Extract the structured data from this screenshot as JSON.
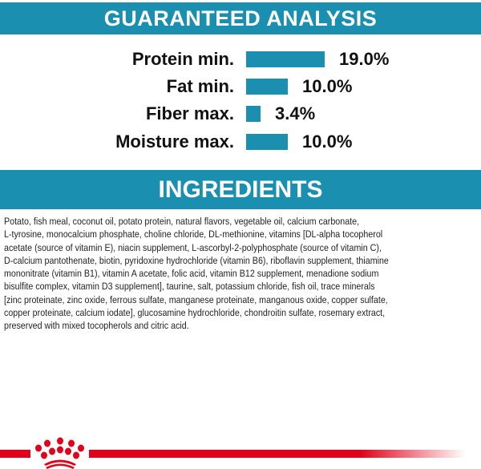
{
  "guaranteed_analysis": {
    "title": "GUARANTEED ANALYSIS",
    "accent_color": "#1b8fb0",
    "rows": [
      {
        "label": "Protein min.",
        "value": "19.0%",
        "percent": 19.0
      },
      {
        "label": "Fat min.",
        "value": "10.0%",
        "percent": 10.0
      },
      {
        "label": "Fiber max.",
        "value": "3.4%",
        "percent": 3.4
      },
      {
        "label": "Moisture max.",
        "value": "10.0%",
        "percent": 10.0
      }
    ]
  },
  "ingredients": {
    "title": "INGREDIENTS",
    "lines": [
      "Potato, fish meal, coconut oil, potato protein, natural flavors, vegetable oil, calcium carbonate,",
      "L-tyrosine, monocalcium phosphate, choline chloride, DL-methionine, vitamins [DL-alpha tocopherol",
      "acetate (source of vitamin E), niacin supplement, L-ascorbyl-2-polyphosphate (source of vitamin C),",
      "D-calcium pantothenate, biotin, pyridoxine hydrochloride (vitamin B6), riboflavin supplement, thiamine",
      "mononitrate (vitamin B1), vitamin A acetate, folic acid, vitamin B12 supplement, menadione sodium",
      "bisulfite complex, vitamin D3 supplement], taurine, salt, potassium chloride, fish oil, trace minerals",
      "[zinc proteinate, zinc oxide, ferrous sulfate, manganese proteinate, manganous oxide, copper sulfate,",
      "copper proteinate, calcium iodate], glucosamine hydrochloride, chondroitin sulfate, rosemary extract,",
      "preserved with mixed tocopherols and citric acid."
    ]
  },
  "brand": {
    "logo": "royal-canin-crown",
    "color": "#e2001a"
  }
}
